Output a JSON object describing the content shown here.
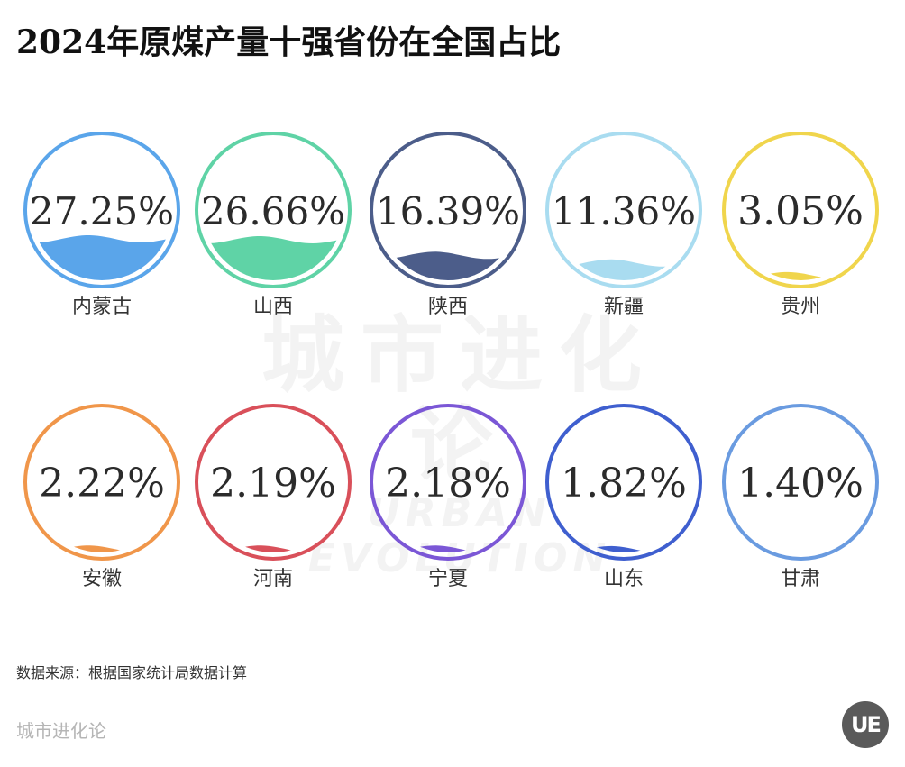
{
  "title": "2024年原煤产量十强省份在全国占比",
  "watermark": {
    "cn": "城市进化论",
    "en": "URBAN EVOLUTION"
  },
  "footer": {
    "source": "数据来源：根据国家统计局数据计算",
    "brand": "城市进化论",
    "logo": "UE"
  },
  "chart_data": {
    "type": "liquid-fill gauge grid",
    "title": "2024年原煤产量十强省份在全国占比",
    "unit": "%",
    "categories": [
      "内蒙古",
      "山西",
      "陕西",
      "新疆",
      "贵州",
      "安徽",
      "河南",
      "宁夏",
      "山东",
      "甘肃"
    ],
    "values": [
      27.25,
      26.66,
      16.39,
      11.36,
      3.05,
      2.22,
      2.19,
      2.18,
      1.82,
      1.4
    ],
    "labels": [
      "27.25%",
      "26.66%",
      "16.39%",
      "11.36%",
      "3.05%",
      "2.22%",
      "2.19%",
      "2.18%",
      "1.82%",
      "1.40%"
    ],
    "colors": [
      "#5aa5ea",
      "#5fd3a6",
      "#4c5d8a",
      "#a9dcf0",
      "#f0d54c",
      "#f0964a",
      "#d9505a",
      "#7b57d6",
      "#3f5fcf",
      "#6a9be0"
    ],
    "layout": {
      "rows": 2,
      "cols": 5
    },
    "source": "数据来源：根据国家统计局数据计算"
  }
}
